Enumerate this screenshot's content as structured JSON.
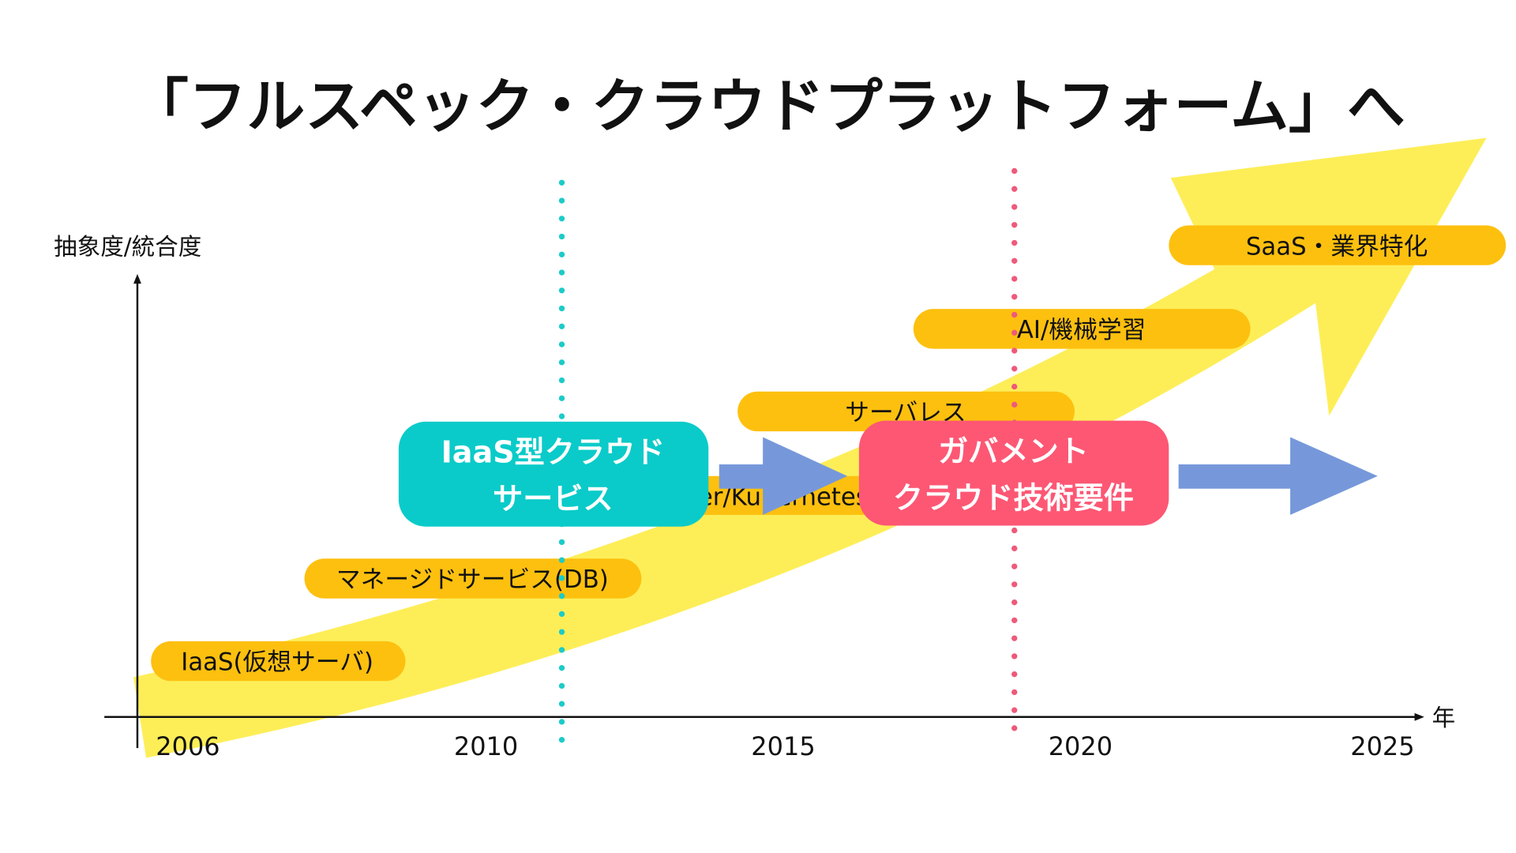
{
  "title": "「フルスペック・クラウドプラットフォーム」へ",
  "y_axis_label": "抽象度/統合度",
  "x_axis_label": "年",
  "years": [
    "2006",
    "2010",
    "2015",
    "2020",
    "2025"
  ],
  "stages": [
    {
      "label": "IaaS(仮想サーバ)"
    },
    {
      "label": "マネージドサービス(DB)"
    },
    {
      "label": "Docker/Kubernetes"
    },
    {
      "label": "サーバレス"
    },
    {
      "label": "AI/機械学習"
    },
    {
      "label": "SaaS・業界特化"
    }
  ],
  "milestones": [
    {
      "line1": "IaaS型クラウド",
      "line2": "サービス",
      "color": "#0ACBC9"
    },
    {
      "line1": "ガバメント",
      "line2": "クラウド技術要件",
      "color": "#FD5774"
    }
  ],
  "colors": {
    "trend_arrow": "#FDEE58",
    "pill": "#FDC00F",
    "flow_arrow": "#7698DA",
    "line_2011": "#1CCBC8",
    "line_2019": "#EE5A7A"
  }
}
